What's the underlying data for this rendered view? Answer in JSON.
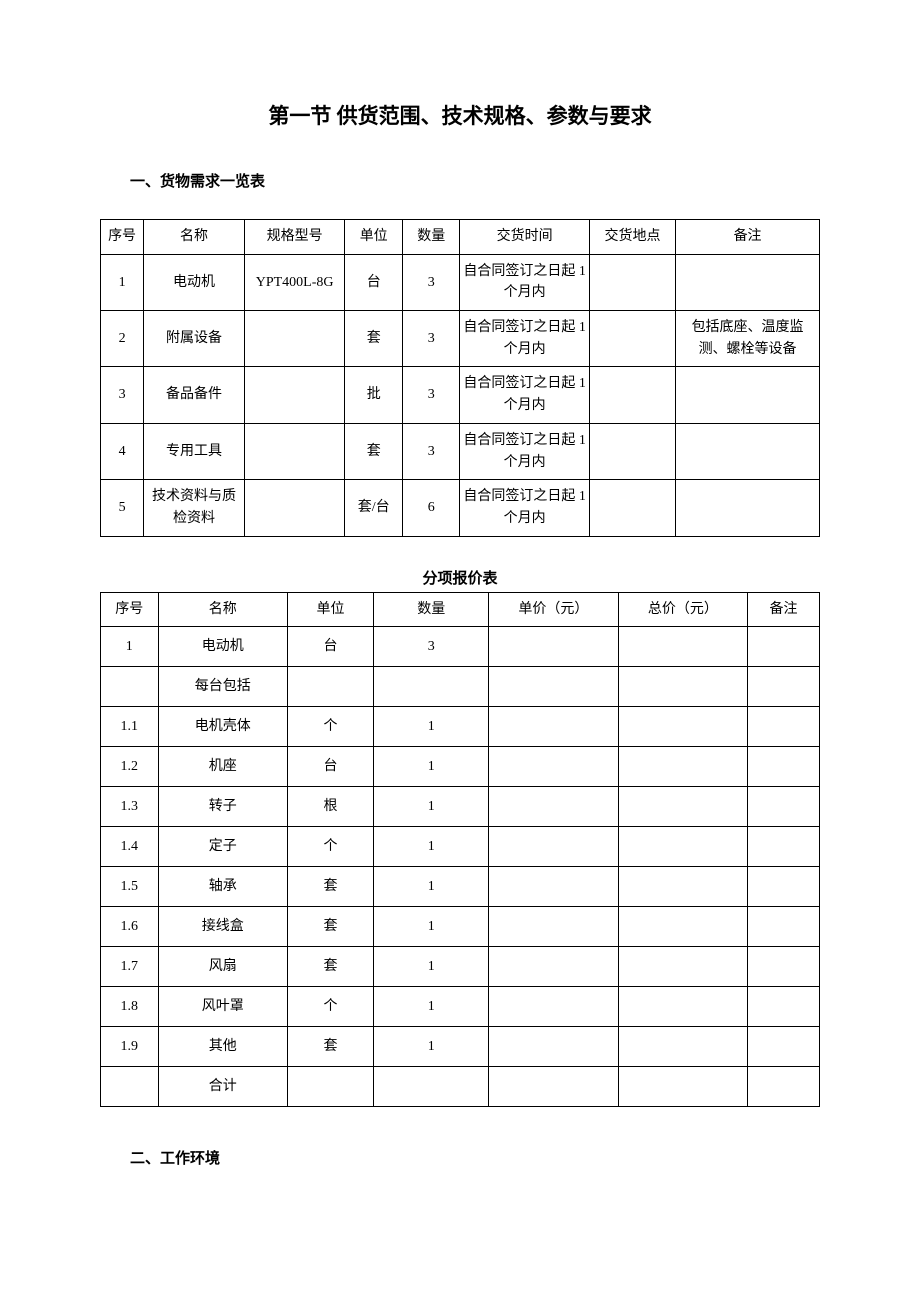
{
  "title": "第一节 供货范围、技术规格、参数与要求",
  "section1_heading": "一、货物需求一览表",
  "section2_heading": "二、工作环境",
  "table1": {
    "headers": [
      "序号",
      "名称",
      "规格型号",
      "单位",
      "数量",
      "交货时间",
      "交货地点",
      "备注"
    ],
    "rows": [
      [
        "1",
        "电动机",
        "YPT400L-8G",
        "台",
        "3",
        "自合同签订之日起 1 个月内",
        "",
        ""
      ],
      [
        "2",
        "附属设备",
        "",
        "套",
        "3",
        "自合同签订之日起 1 个月内",
        "",
        "包括底座、温度监测、螺栓等设备"
      ],
      [
        "3",
        "备品备件",
        "",
        "批",
        "3",
        "自合同签订之日起 1 个月内",
        "",
        ""
      ],
      [
        "4",
        "专用工具",
        "",
        "套",
        "3",
        "自合同签订之日起 1 个月内",
        "",
        ""
      ],
      [
        "5",
        "技术资料与质检资料",
        "",
        "套/台",
        "6",
        "自合同签订之日起 1 个月内",
        "",
        ""
      ]
    ]
  },
  "table2_caption": "分项报价表",
  "table2": {
    "headers": [
      "序号",
      "名称",
      "单位",
      "数量",
      "单价（元）",
      "总价（元）",
      "备注"
    ],
    "rows": [
      [
        "1",
        "电动机",
        "台",
        "3",
        "",
        "",
        ""
      ],
      [
        "",
        "每台包括",
        "",
        "",
        "",
        "",
        ""
      ],
      [
        "1.1",
        "电机壳体",
        "个",
        "1",
        "",
        "",
        ""
      ],
      [
        "1.2",
        "机座",
        "台",
        "1",
        "",
        "",
        ""
      ],
      [
        "1.3",
        "转子",
        "根",
        "1",
        "",
        "",
        ""
      ],
      [
        "1.4",
        "定子",
        "个",
        "1",
        "",
        "",
        ""
      ],
      [
        "1.5",
        "轴承",
        "套",
        "1",
        "",
        "",
        ""
      ],
      [
        "1.6",
        "接线盒",
        "套",
        "1",
        "",
        "",
        ""
      ],
      [
        "1.7",
        "风扇",
        "套",
        "1",
        "",
        "",
        ""
      ],
      [
        "1.8",
        "风叶罩",
        "个",
        "1",
        "",
        "",
        ""
      ],
      [
        "1.9",
        "其他",
        "套",
        "1",
        "",
        "",
        ""
      ],
      [
        "",
        "合计",
        "",
        "",
        "",
        "",
        ""
      ]
    ]
  }
}
